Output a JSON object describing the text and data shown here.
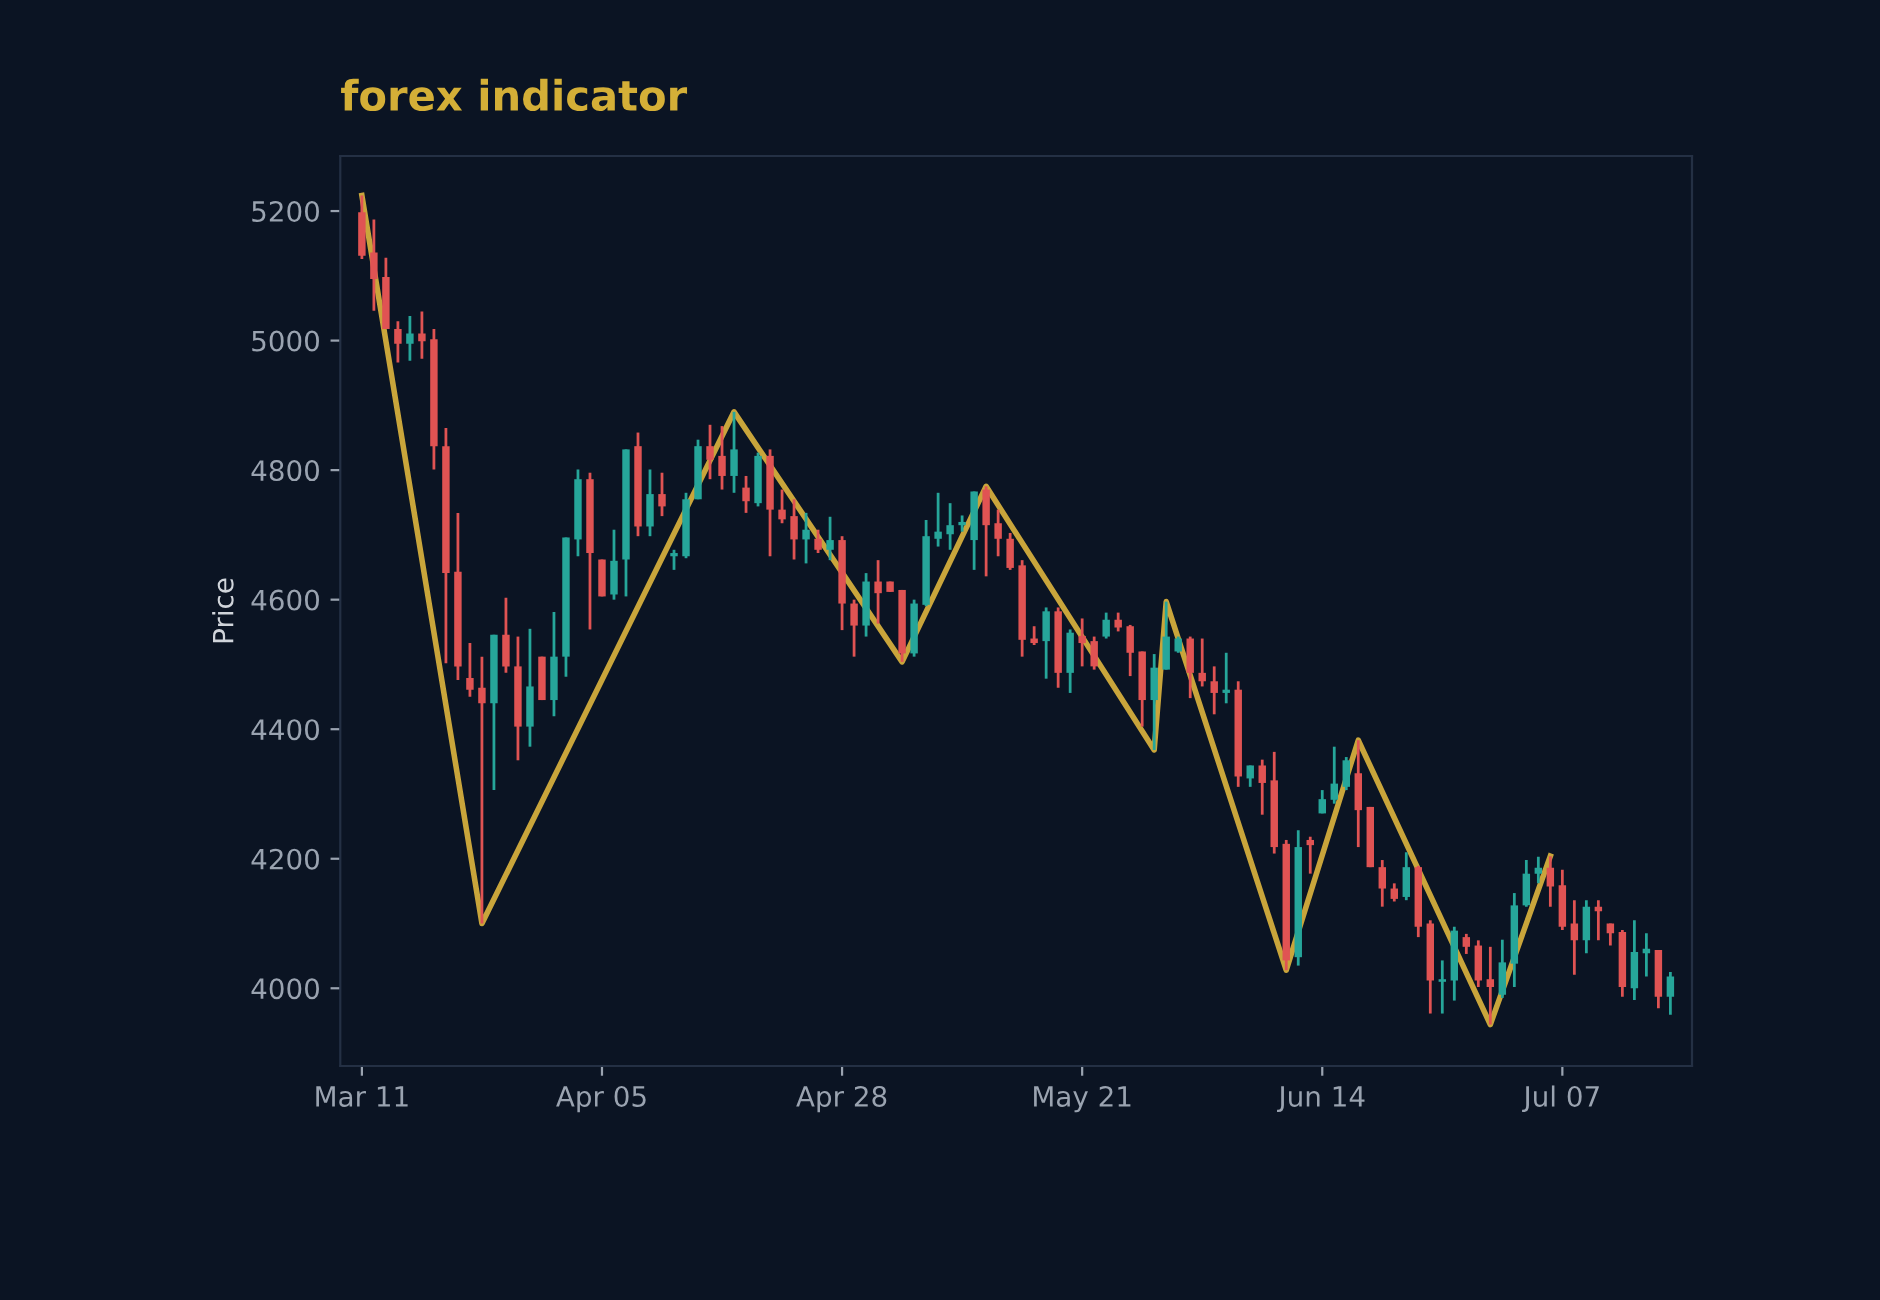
{
  "chart_data": {
    "type": "candlestick",
    "title": "forex indicator",
    "ylabel": "Price",
    "categories": [
      "Mar 11",
      null,
      null,
      null,
      null,
      null,
      null,
      null,
      null,
      null,
      null,
      null,
      null,
      null,
      null,
      null,
      null,
      null,
      null,
      null,
      "Apr 05",
      null,
      null,
      null,
      null,
      null,
      null,
      null,
      null,
      null,
      null,
      null,
      null,
      null,
      null,
      null,
      null,
      null,
      null,
      null,
      "Apr 28",
      null,
      null,
      null,
      null,
      null,
      null,
      null,
      null,
      null,
      null,
      null,
      null,
      null,
      null,
      null,
      null,
      null,
      null,
      null,
      "May 21",
      null,
      null,
      null,
      null,
      null,
      null,
      null,
      null,
      null,
      null,
      null,
      null,
      null,
      null,
      null,
      null,
      null,
      null,
      null,
      "Jun 14",
      null,
      null,
      null,
      null,
      null,
      null,
      null,
      null,
      null,
      null,
      null,
      null,
      null,
      null,
      null,
      null,
      null,
      null,
      null,
      "Jul 07",
      null,
      null,
      null,
      null,
      null,
      null,
      null,
      null,
      null
    ],
    "ohlc": [
      [
        5198,
        5224,
        5126,
        5131
      ],
      [
        5136,
        5187,
        5046,
        5095
      ],
      [
        5098,
        5128,
        5018,
        5018
      ],
      [
        5018,
        5030,
        4966,
        4995
      ],
      [
        4995,
        5038,
        4969,
        5011
      ],
      [
        5011,
        5045,
        4972,
        4999
      ],
      [
        5002,
        5018,
        4801,
        4837
      ],
      [
        4837,
        4865,
        4502,
        4641
      ],
      [
        4643,
        4734,
        4476,
        4497
      ],
      [
        4479,
        4533,
        4450,
        4461
      ],
      [
        4464,
        4512,
        4100,
        4440
      ],
      [
        4440,
        4546,
        4306,
        4546
      ],
      [
        4546,
        4603,
        4487,
        4497
      ],
      [
        4497,
        4543,
        4352,
        4404
      ],
      [
        4404,
        4555,
        4373,
        4466
      ],
      [
        4512,
        4512,
        4445,
        4445
      ],
      [
        4445,
        4581,
        4420,
        4512
      ],
      [
        4512,
        4696,
        4481,
        4696
      ],
      [
        4693,
        4801,
        4667,
        4786
      ],
      [
        4786,
        4796,
        4554,
        4672
      ],
      [
        4662,
        4662,
        4605,
        4605
      ],
      [
        4608,
        4708,
        4600,
        4660
      ],
      [
        4662,
        4832,
        4605,
        4832
      ],
      [
        4837,
        4858,
        4698,
        4713
      ],
      [
        4713,
        4801,
        4698,
        4763
      ],
      [
        4763,
        4796,
        4729,
        4744
      ],
      [
        4667,
        4677,
        4646,
        4672
      ],
      [
        4667,
        4765,
        4664,
        4755
      ],
      [
        4755,
        4847,
        4755,
        4837
      ],
      [
        4837,
        4870,
        4786,
        4816
      ],
      [
        4822,
        4868,
        4770,
        4791
      ],
      [
        4791,
        4890,
        4765,
        4832
      ],
      [
        4773,
        4791,
        4734,
        4752
      ],
      [
        4749,
        4827,
        4744,
        4822
      ],
      [
        4822,
        4832,
        4667,
        4739
      ],
      [
        4739,
        4770,
        4718,
        4724
      ],
      [
        4729,
        4755,
        4662,
        4693
      ],
      [
        4693,
        4734,
        4656,
        4708
      ],
      [
        4694,
        4708,
        4672,
        4677
      ],
      [
        4677,
        4728,
        4661,
        4692
      ],
      [
        4692,
        4698,
        4553,
        4594
      ],
      [
        4594,
        4600,
        4512,
        4560
      ],
      [
        4560,
        4641,
        4543,
        4628
      ],
      [
        4628,
        4661,
        4563,
        4610
      ],
      [
        4628,
        4628,
        4612,
        4612
      ],
      [
        4615,
        4615,
        4504,
        4517
      ],
      [
        4517,
        4600,
        4512,
        4594
      ],
      [
        4592,
        4723,
        4590,
        4698
      ],
      [
        4694,
        4765,
        4682,
        4705
      ],
      [
        4701,
        4749,
        4677,
        4715
      ],
      [
        4715,
        4730,
        4705,
        4720
      ],
      [
        4692,
        4767,
        4646,
        4767
      ],
      [
        4770,
        4775,
        4636,
        4715
      ],
      [
        4718,
        4739,
        4667,
        4694
      ],
      [
        4694,
        4703,
        4646,
        4649
      ],
      [
        4653,
        4661,
        4512,
        4538
      ],
      [
        4540,
        4559,
        4530,
        4533
      ],
      [
        4536,
        4588,
        4478,
        4582
      ],
      [
        4582,
        4588,
        4464,
        4487
      ],
      [
        4487,
        4554,
        4456,
        4549
      ],
      [
        4544,
        4571,
        4497,
        4533
      ],
      [
        4536,
        4543,
        4492,
        4497
      ],
      [
        4543,
        4580,
        4540,
        4569
      ],
      [
        4569,
        4580,
        4551,
        4557
      ],
      [
        4559,
        4561,
        4482,
        4518
      ],
      [
        4520,
        4520,
        4404,
        4445
      ],
      [
        4445,
        4516,
        4368,
        4495
      ],
      [
        4492,
        4597,
        4492,
        4543
      ],
      [
        4520,
        4543,
        4518,
        4540
      ],
      [
        4540,
        4543,
        4448,
        4487
      ],
      [
        4487,
        4540,
        4466,
        4474
      ],
      [
        4474,
        4497,
        4423,
        4456
      ],
      [
        4456,
        4518,
        4440,
        4461
      ],
      [
        4461,
        4474,
        4311,
        4327
      ],
      [
        4324,
        4344,
        4311,
        4344
      ],
      [
        4344,
        4353,
        4268,
        4317
      ],
      [
        4321,
        4365,
        4208,
        4218
      ],
      [
        4223,
        4229,
        4028,
        4043
      ],
      [
        4048,
        4244,
        4035,
        4218
      ],
      [
        4229,
        4234,
        4177,
        4221
      ],
      [
        4270,
        4306,
        4270,
        4292
      ],
      [
        4291,
        4373,
        4285,
        4316
      ],
      [
        4311,
        4357,
        4306,
        4352
      ],
      [
        4332,
        4383,
        4218,
        4275
      ],
      [
        4280,
        4280,
        4187,
        4187
      ],
      [
        4187,
        4198,
        4126,
        4154
      ],
      [
        4154,
        4162,
        4134,
        4138
      ],
      [
        4141,
        4210,
        4136,
        4187
      ],
      [
        4187,
        4189,
        4079,
        4095
      ],
      [
        4100,
        4105,
        3961,
        4012
      ],
      [
        4010,
        4043,
        3961,
        4014
      ],
      [
        4012,
        4095,
        3981,
        4089
      ],
      [
        4079,
        4084,
        4053,
        4064
      ],
      [
        4066,
        4074,
        4002,
        4012
      ],
      [
        4014,
        4064,
        3944,
        4002
      ],
      [
        3990,
        4075,
        3985,
        4040
      ],
      [
        4038,
        4147,
        4002,
        4128
      ],
      [
        4128,
        4198,
        4126,
        4177
      ],
      [
        4177,
        4203,
        4162,
        4186
      ],
      [
        4186,
        4204,
        4126,
        4157
      ],
      [
        4159,
        4183,
        4090,
        4095
      ],
      [
        4100,
        4136,
        4021,
        4074
      ],
      [
        4074,
        4136,
        4054,
        4126
      ],
      [
        4126,
        4136,
        4074,
        4119
      ],
      [
        4100,
        4100,
        4066,
        4085
      ],
      [
        4087,
        4090,
        3987,
        4002
      ],
      [
        4000,
        4105,
        3982,
        4056
      ],
      [
        4054,
        4085,
        4018,
        4061
      ],
      [
        4059,
        4059,
        3969,
        3987
      ],
      [
        3987,
        4025,
        3959,
        4018
      ]
    ],
    "colors": [
      "#e05353",
      "#e05353",
      "#e05353",
      "#e05353",
      "#26a69a",
      "#e05353",
      "#e05353",
      "#e05353",
      "#e05353",
      "#e05353",
      "#e05353",
      "#26a69a",
      "#e05353",
      "#e05353",
      "#26a69a",
      "#e05353",
      "#26a69a",
      "#26a69a",
      "#26a69a",
      "#e05353",
      "#e05353",
      "#26a69a",
      "#26a69a",
      "#e05353",
      "#26a69a",
      "#e05353",
      "#26a69a",
      "#26a69a",
      "#26a69a",
      "#e05353",
      "#e05353",
      "#26a69a",
      "#e05353",
      "#26a69a",
      "#e05353",
      "#e05353",
      "#e05353",
      "#26a69a",
      "#e05353",
      "#26a69a",
      "#e05353",
      "#e05353",
      "#26a69a",
      "#e05353",
      "#e05353",
      "#e05353",
      "#26a69a",
      "#26a69a",
      "#26a69a",
      "#26a69a",
      "#26a69a",
      "#26a69a",
      "#e05353",
      "#e05353",
      "#e05353",
      "#e05353",
      "#e05353",
      "#26a69a",
      "#e05353",
      "#26a69a",
      "#e05353",
      "#e05353",
      "#26a69a",
      "#e05353",
      "#e05353",
      "#e05353",
      "#26a69a",
      "#26a69a",
      "#26a69a",
      "#e05353",
      "#e05353",
      "#e05353",
      "#26a69a",
      "#e05353",
      "#26a69a",
      "#e05353",
      "#e05353",
      "#e05353",
      "#26a69a",
      "#e05353",
      "#26a69a",
      "#26a69a",
      "#26a69a",
      "#e05353",
      "#e05353",
      "#e05353",
      "#e05353",
      "#26a69a",
      "#e05353",
      "#e05353",
      "#26a69a",
      "#26a69a",
      "#e05353",
      "#e05353",
      "#e05353",
      "#26a69a",
      "#26a69a",
      "#26a69a",
      "#26a69a",
      "#e05353",
      "#e05353",
      "#e05353",
      "#26a69a",
      "#e05353",
      "#e05353",
      "#e05353",
      "#26a69a",
      "#26a69a",
      "#e05353",
      "#26a69a"
    ],
    "series": [
      {
        "type": "line",
        "color": "#c9a53b",
        "values": [
          5224,
          null,
          null,
          null,
          null,
          null,
          null,
          null,
          null,
          null,
          4100,
          null,
          null,
          null,
          null,
          null,
          null,
          null,
          null,
          null,
          null,
          null,
          null,
          null,
          null,
          null,
          null,
          null,
          null,
          null,
          null,
          4890,
          null,
          null,
          null,
          null,
          null,
          null,
          null,
          null,
          null,
          null,
          null,
          null,
          null,
          4504,
          null,
          null,
          null,
          null,
          null,
          null,
          4775,
          null,
          null,
          null,
          null,
          null,
          null,
          null,
          null,
          null,
          null,
          null,
          null,
          null,
          4368,
          4597,
          null,
          null,
          null,
          null,
          null,
          null,
          null,
          null,
          null,
          4028,
          null,
          null,
          null,
          null,
          null,
          4383,
          null,
          null,
          null,
          null,
          null,
          null,
          null,
          null,
          null,
          null,
          3944,
          null,
          null,
          null,
          null,
          4204,
          null,
          null,
          null,
          null,
          null,
          null,
          null,
          null,
          null,
          null
        ]
      }
    ],
    "ylim": [
      3880,
      5285
    ],
    "yticks": [
      4000,
      4200,
      4400,
      4600,
      4800,
      5000,
      5200
    ],
    "grid": false,
    "legend": false
  }
}
